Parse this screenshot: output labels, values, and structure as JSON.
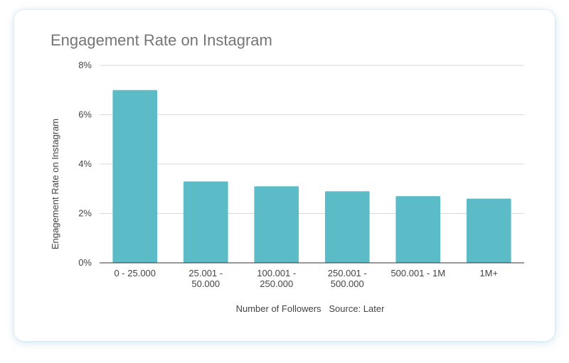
{
  "chart_data": {
    "type": "bar",
    "title": "Engagement Rate on Instagram",
    "xlabel": "Number of Followers   Source: Later",
    "ylabel": "Engagement Rate on Instagram",
    "categories": [
      [
        "0 - 25.000"
      ],
      [
        "25.001 -",
        "50.000"
      ],
      [
        "100.001 -",
        "250.000"
      ],
      [
        "250.001 -",
        "500.000"
      ],
      [
        "500.001 - 1M"
      ],
      [
        "1M+"
      ]
    ],
    "values": [
      7.0,
      3.3,
      3.1,
      2.9,
      2.7,
      2.6
    ],
    "yticks": [
      "0%",
      "2%",
      "4%",
      "6%",
      "8%"
    ],
    "ylim": [
      0,
      8
    ],
    "grid": true,
    "legend": "none",
    "bar_color": "#5bbcc8",
    "grid_color": "#d9d9d9",
    "axis_color": "#333333"
  }
}
